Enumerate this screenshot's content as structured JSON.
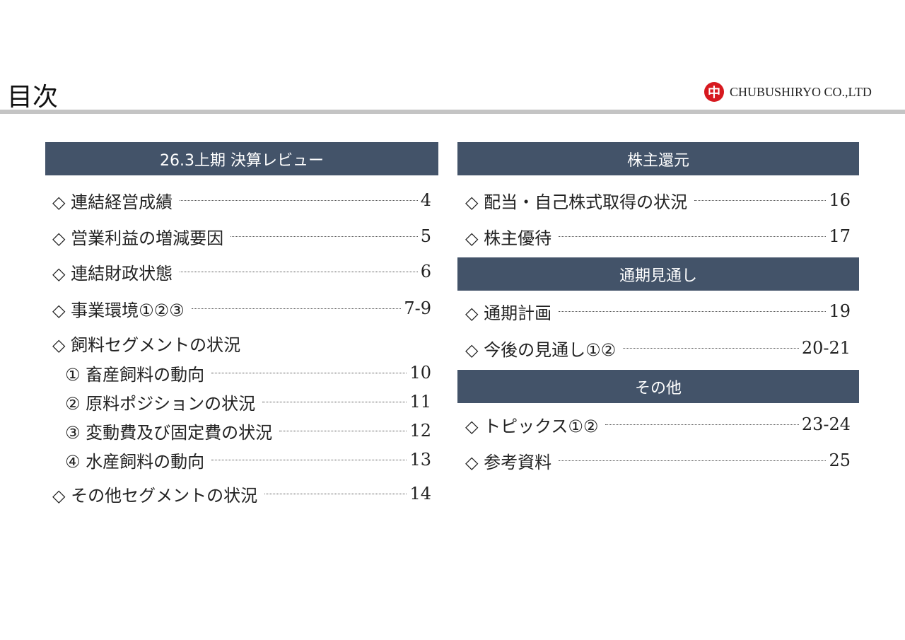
{
  "title": "目次",
  "logo": {
    "mark": "中",
    "text": "CHUBUSHIRYO CO.,LTD"
  },
  "colors": {
    "section_header": "#435369",
    "logo_red": "#d7191f",
    "rule": "#c4c4c4"
  },
  "left": {
    "sections": [
      {
        "label": "26.3上期 決算レビュー"
      }
    ],
    "items": [
      {
        "label": "◇ 連結経営成績",
        "page": "4"
      },
      {
        "label": "◇ 営業利益の増減要因",
        "page": "5"
      },
      {
        "label": "◇ 連結財政状態",
        "page": "6"
      },
      {
        "label": "◇ 事業環境①②③",
        "page": "7-9"
      },
      {
        "label": "◇ 飼料セグメントの状況",
        "page": ""
      },
      {
        "label": "① 畜産飼料の動向",
        "page": "10",
        "sub": true
      },
      {
        "label": "② 原料ポジションの状況",
        "page": "11",
        "sub": true
      },
      {
        "label": "③ 変動費及び固定費の状況",
        "page": "12",
        "sub": true
      },
      {
        "label": "④ 水産飼料の動向",
        "page": "13",
        "sub": true
      },
      {
        "label": "◇ その他セグメントの状況",
        "page": "14"
      }
    ]
  },
  "right": {
    "sections": [
      {
        "label": "株主還元"
      },
      {
        "label": "通期見通し"
      },
      {
        "label": "その他"
      }
    ],
    "items": [
      {
        "label": "◇ 配当・自己株式取得の状況",
        "page": "16"
      },
      {
        "label": "◇ 株主優待",
        "page": "17"
      },
      {
        "label": "◇ 通期計画",
        "page": "19"
      },
      {
        "label": "◇ 今後の見通し①②",
        "page": "20-21"
      },
      {
        "label": "◇ トピックス①②",
        "page": "23-24"
      },
      {
        "label": "◇ 参考資料",
        "page": "25"
      }
    ]
  }
}
